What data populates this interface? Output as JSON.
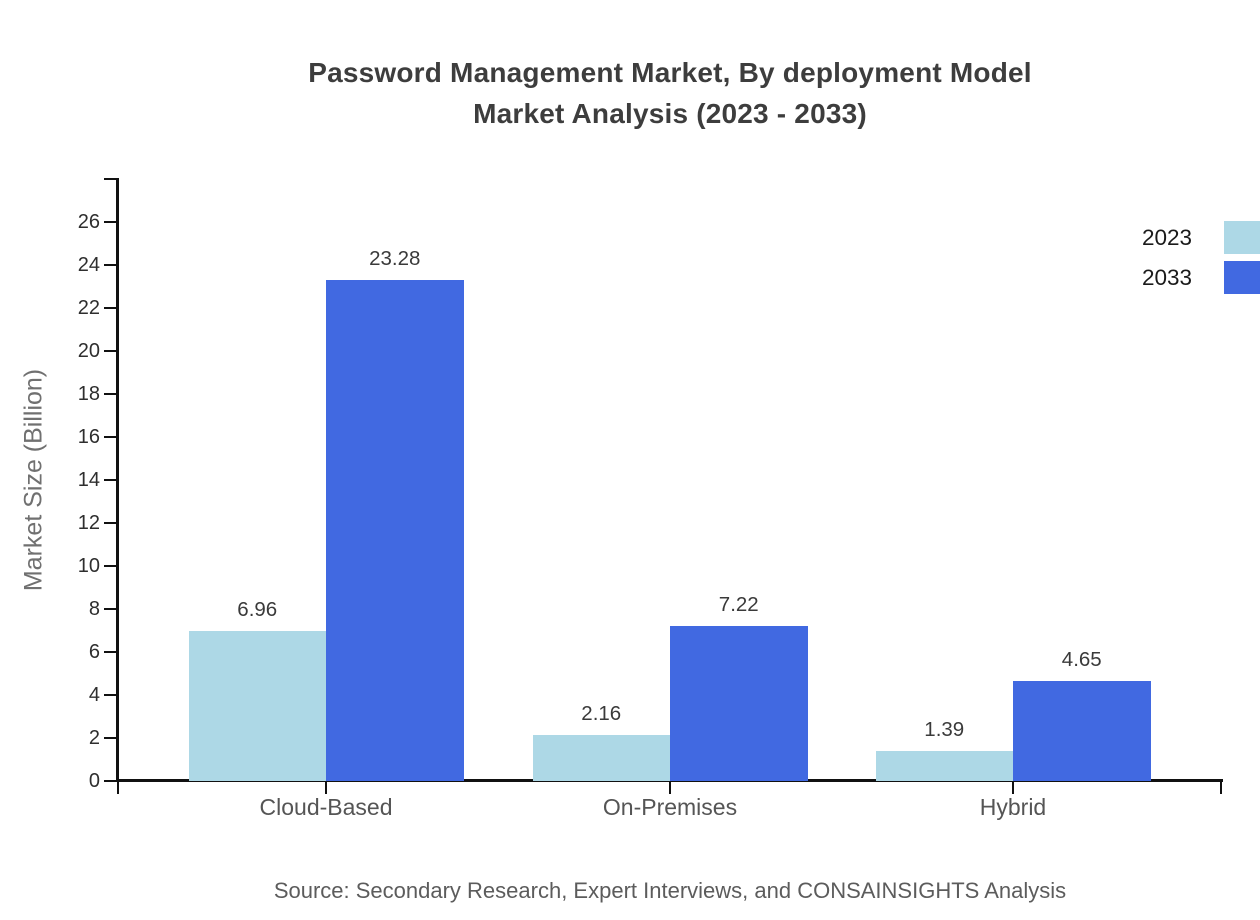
{
  "title": {
    "line1": "Password Management Market, By deployment Model",
    "line2": "Market Analysis (2023 - 2033)"
  },
  "chart_data": {
    "type": "bar",
    "categories": [
      "Cloud-Based",
      "On-Premises",
      "Hybrid"
    ],
    "series": [
      {
        "name": "2023",
        "color": "#ADD8E6",
        "values": [
          6.96,
          2.16,
          1.39
        ]
      },
      {
        "name": "2033",
        "color": "#4169E1",
        "values": [
          23.28,
          7.22,
          4.65
        ]
      }
    ],
    "value_labels": [
      "6.96",
      "23.28",
      "2.16",
      "7.22",
      "1.39",
      "4.65"
    ],
    "title": "Password Management Market, By deployment Model Market Analysis (2023 - 2033)",
    "xlabel": "",
    "ylabel": "Market Size (Billion)",
    "ylim": [
      0,
      27
    ],
    "yticks": [
      0,
      2,
      4,
      6,
      8,
      10,
      12,
      14,
      16,
      18,
      20,
      22,
      24,
      26
    ],
    "grid": false,
    "legend_position": "top-right",
    "axis_color": "#111111"
  },
  "source": "Source: Secondary Research, Expert Interviews, and CONSAINSIGHTS Analysis"
}
